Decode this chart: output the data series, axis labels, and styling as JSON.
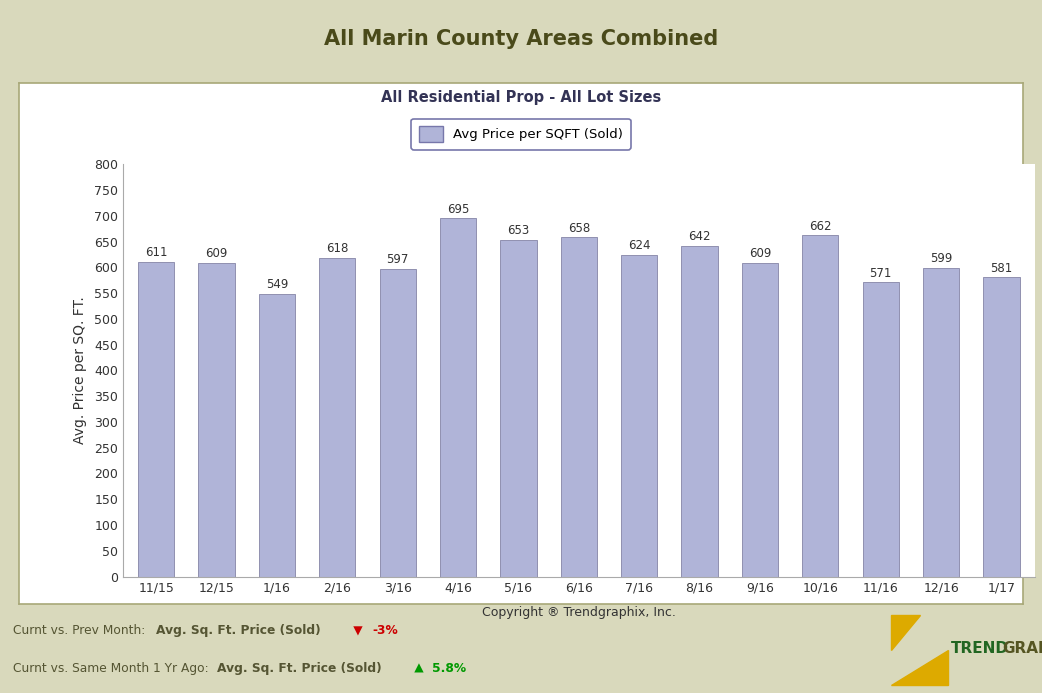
{
  "title": "All Marin County Areas Combined",
  "subtitle": "All Residential Prop - All Lot Sizes",
  "legend_label": "Avg Price per SQFT (Sold)",
  "xlabel": "Copyright ® Trendgraphix, Inc.",
  "ylabel": "Avg. Price per SQ. FT.",
  "categories": [
    "11/15",
    "12/15",
    "1/16",
    "2/16",
    "3/16",
    "4/16",
    "5/16",
    "6/16",
    "7/16",
    "8/16",
    "9/16",
    "10/16",
    "11/16",
    "12/16",
    "1/17"
  ],
  "values": [
    611,
    609,
    549,
    618,
    597,
    695,
    653,
    658,
    624,
    642,
    609,
    662,
    571,
    599,
    581
  ],
  "bar_color": "#b0b4d8",
  "bar_edge_color": "#9090b0",
  "ylim": [
    0,
    800
  ],
  "yticks": [
    0,
    50,
    100,
    150,
    200,
    250,
    300,
    350,
    400,
    450,
    500,
    550,
    600,
    650,
    700,
    750,
    800
  ],
  "title_fontsize": 15,
  "subtitle_fontsize": 10.5,
  "ylabel_fontsize": 10,
  "xlabel_fontsize": 9,
  "tick_fontsize": 9,
  "value_fontsize": 8.5,
  "background_outer": "#d9d9bc",
  "background_inner": "#ffffff",
  "title_color": "#4a4a1a",
  "axis_color": "#333333",
  "subtitle_color": "#333355",
  "footer_color": "#555533",
  "footer_red_color": "#cc0000",
  "footer_green_color": "#009900",
  "legend_box_color": "#b0b4d8",
  "legend_box_edge": "#7777aa"
}
